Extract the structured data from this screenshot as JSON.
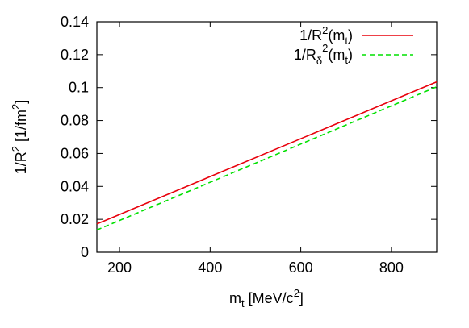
{
  "chart_data": {
    "type": "line",
    "xlabel": {
      "base": "m",
      "sub": "t",
      "rest_before": " [MeV/c",
      "sup": "2",
      "rest_after": "]"
    },
    "ylabel": {
      "base": "1/R",
      "sup": "2",
      "rest_before": " [1/fm",
      "sup2": "2",
      "rest_after": "]"
    },
    "xlim": [
      150,
      900
    ],
    "ylim": [
      0,
      0.14
    ],
    "x_ticks": [
      200,
      400,
      600,
      800
    ],
    "x_tick_labels": [
      "200",
      "400",
      "600",
      "800"
    ],
    "y_ticks": [
      0,
      0.02,
      0.04,
      0.06,
      0.08,
      0.1,
      0.12,
      0.14
    ],
    "y_tick_labels": [
      "0",
      "0.02",
      "0.04",
      "0.06",
      "0.08",
      "0.1",
      "0.12",
      "0.14"
    ],
    "grid": false,
    "legend_placement": "top-right",
    "series": [
      {
        "legend": {
          "base": "1/R",
          "sub": "",
          "sup": "2",
          "paren": "(m",
          "paren_sub": "t",
          "close": ")"
        },
        "color": "#e8000b",
        "dash": "solid",
        "x": [
          150,
          900
        ],
        "y": [
          0.0172,
          0.1035
        ]
      },
      {
        "legend": {
          "base": "1/R",
          "sub": "δ",
          "sup": "2",
          "paren": "(m",
          "paren_sub": "t",
          "close": ")"
        },
        "color": "#00e000",
        "dash": "dashed",
        "x": [
          150,
          900
        ],
        "y": [
          0.0135,
          0.1005
        ]
      }
    ]
  }
}
